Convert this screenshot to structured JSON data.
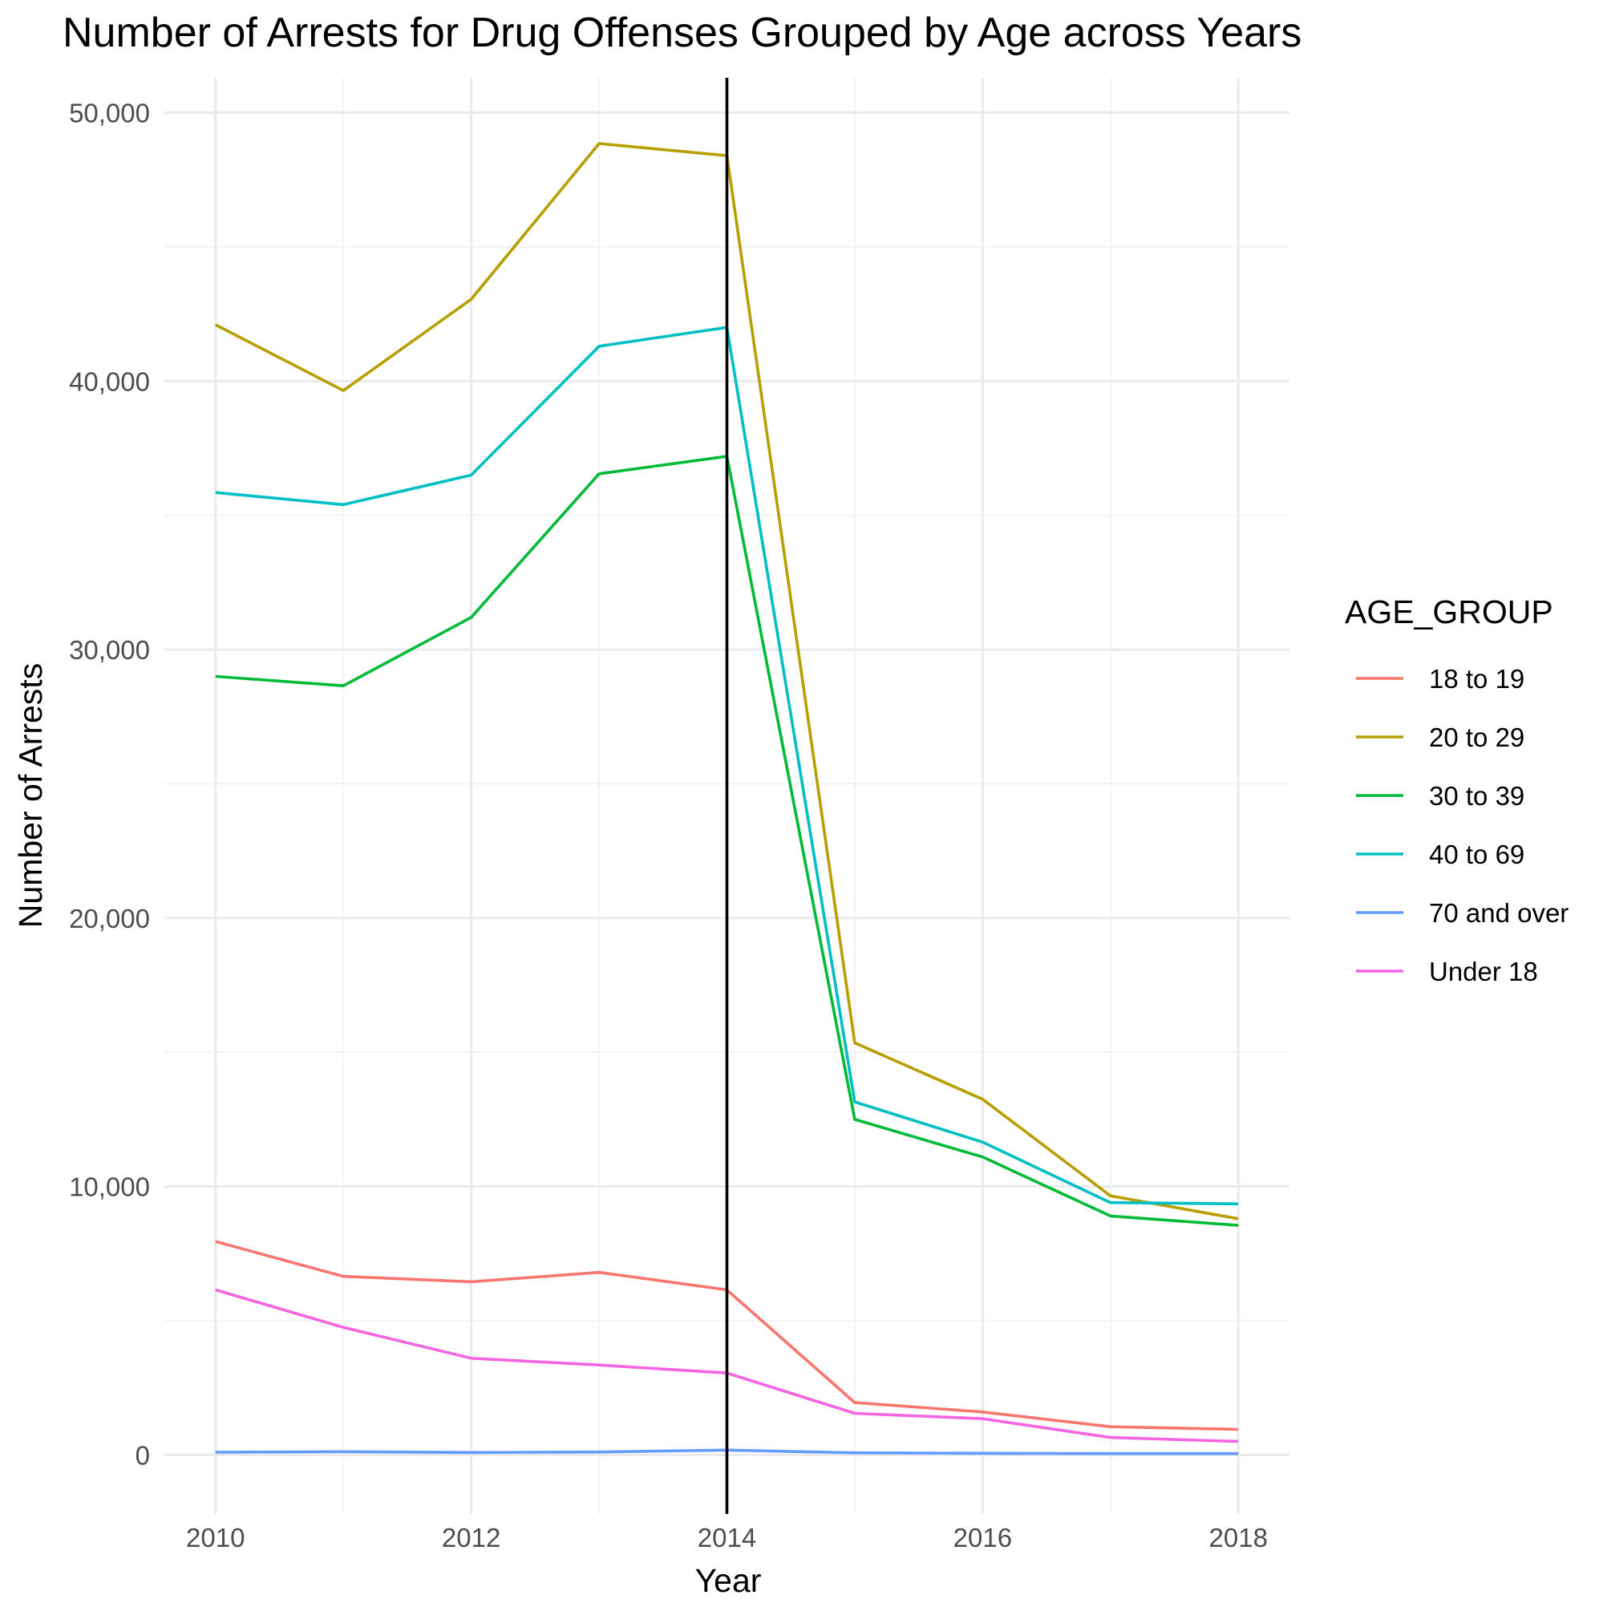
{
  "chart_data": {
    "type": "line",
    "title": "Number of Arrests for Drug Offenses Grouped by Age across Years",
    "xlabel": "Year",
    "ylabel": "Number of Arrests",
    "x": [
      2010,
      2011,
      2012,
      2013,
      2014,
      2015,
      2016,
      2017,
      2018
    ],
    "x_ticks": [
      2010,
      2012,
      2014,
      2016,
      2018
    ],
    "x_tick_labels": [
      "2010",
      "2012",
      "2014",
      "2016",
      "2018"
    ],
    "xlim": [
      2009.6,
      2018.4
    ],
    "y_ticks": [
      0,
      10000,
      20000,
      30000,
      40000,
      50000
    ],
    "y_tick_labels": [
      "0",
      "10,000",
      "20,000",
      "30,000",
      "40,000",
      "50,000"
    ],
    "ylim": [
      -2200,
      51300
    ],
    "grid": true,
    "vline_x": 2014,
    "legend": {
      "title": "AGE_GROUP",
      "position": "right"
    },
    "series": [
      {
        "name": "18 to 19",
        "color": "#F8766D",
        "values": [
          7950,
          6650,
          6450,
          6800,
          6150,
          1950,
          1600,
          1050,
          950
        ]
      },
      {
        "name": "20 to 29",
        "color": "#B79F00",
        "values": [
          42100,
          39650,
          43050,
          48850,
          48400,
          15350,
          13250,
          9650,
          8800
        ]
      },
      {
        "name": "30 to 39",
        "color": "#00BA38",
        "values": [
          29000,
          28650,
          31200,
          36550,
          37200,
          12500,
          11100,
          8900,
          8550
        ]
      },
      {
        "name": "40 to 69",
        "color": "#00BFC4",
        "values": [
          35850,
          35400,
          36500,
          41300,
          42000,
          13150,
          11650,
          9400,
          9350
        ]
      },
      {
        "name": "70 and over",
        "color": "#619CFF",
        "values": [
          100,
          120,
          90,
          110,
          180,
          80,
          60,
          50,
          50
        ]
      },
      {
        "name": "Under 18",
        "color": "#F564E3",
        "values": [
          6150,
          4750,
          3600,
          3350,
          3050,
          1550,
          1350,
          650,
          500
        ]
      }
    ]
  }
}
